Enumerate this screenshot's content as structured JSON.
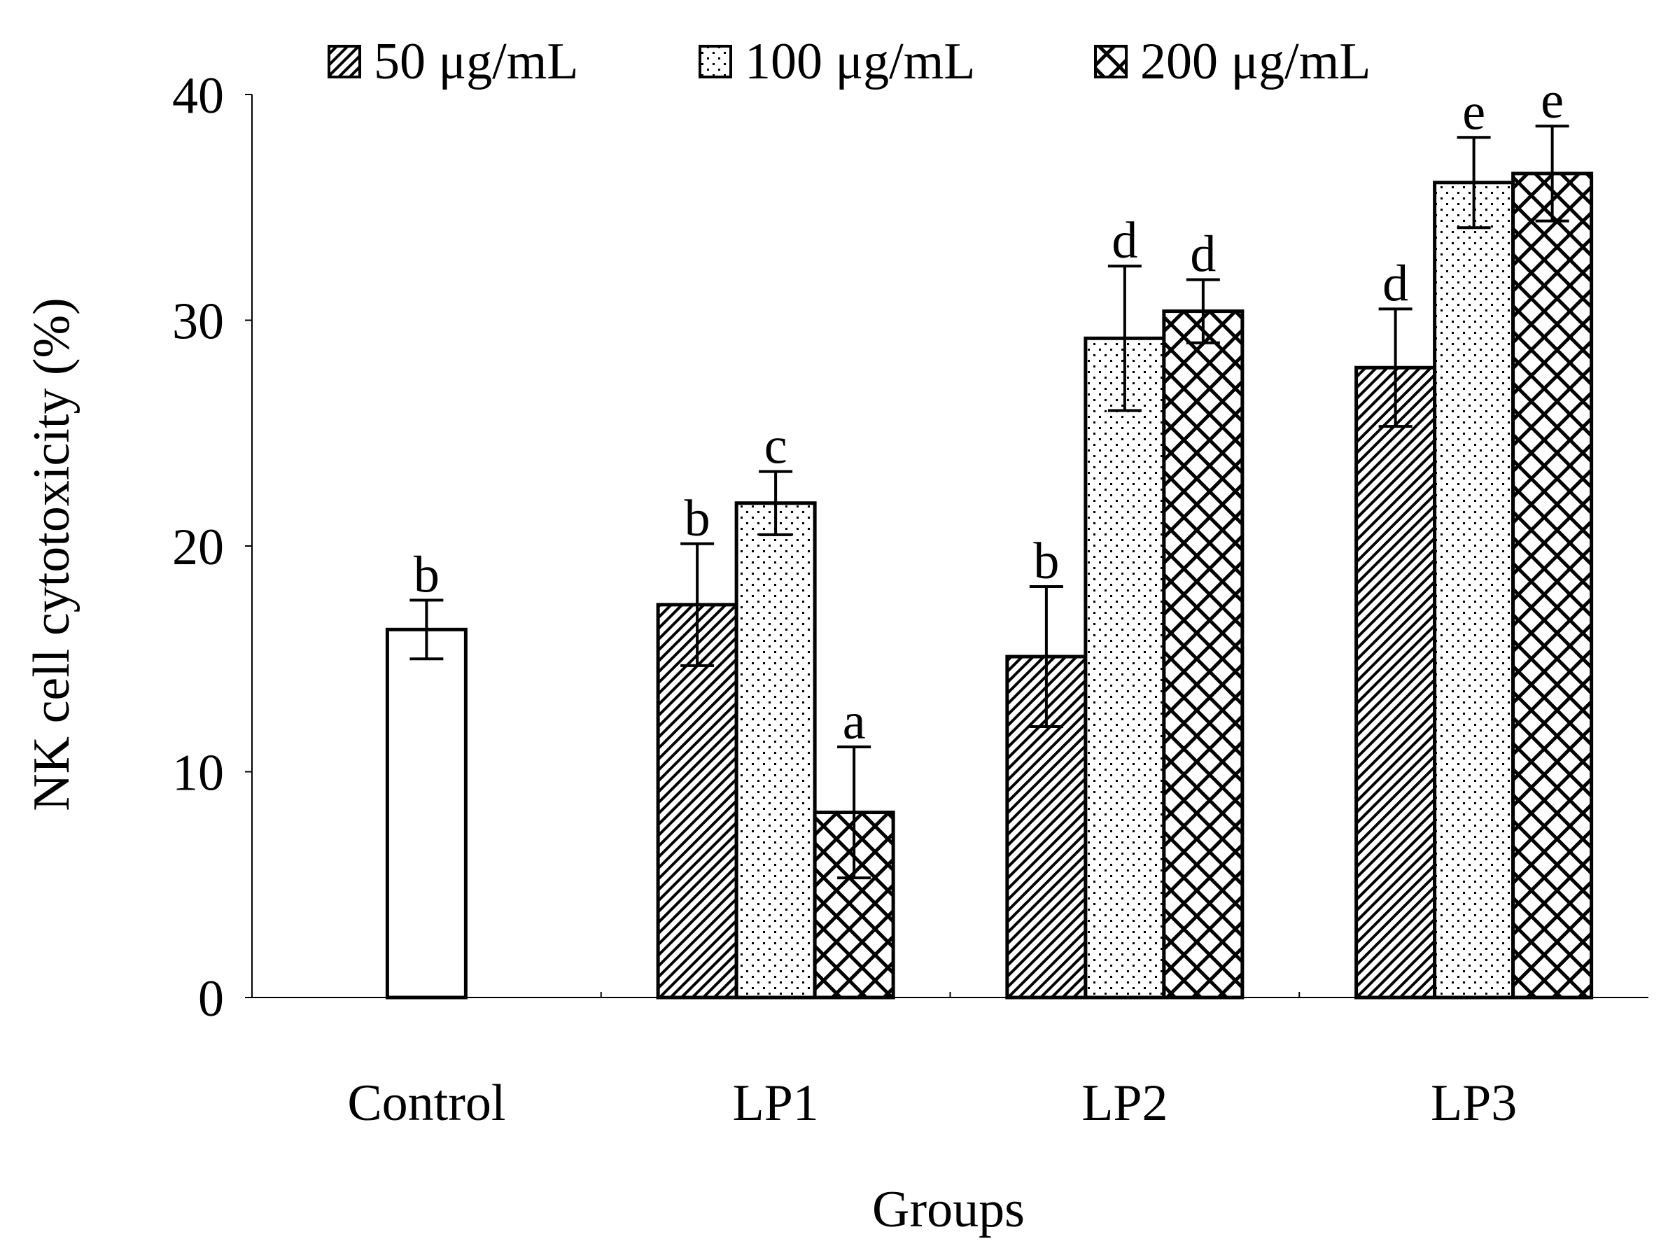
{
  "chart_data": {
    "type": "bar",
    "ylabel": "NK cell cytotoxicity (%)",
    "xlabel": "Groups",
    "ylim": [
      0,
      40
    ],
    "yticks": [
      0,
      10,
      20,
      30,
      40
    ],
    "categories": [
      "Control",
      "LP1",
      "LP2",
      "LP3"
    ],
    "legend_position": "top",
    "series": [
      {
        "name": "50 μg/mL",
        "pattern": "diagonal"
      },
      {
        "name": "100 μg/mL",
        "pattern": "dots"
      },
      {
        "name": "200 μg/mL",
        "pattern": "crosshatch"
      }
    ],
    "bars": [
      {
        "category": "Control",
        "series": null,
        "value": 16.3,
        "error": 1.3,
        "label": "b"
      },
      {
        "category": "LP1",
        "series": "50 μg/mL",
        "value": 17.4,
        "error": 2.7,
        "label": "b"
      },
      {
        "category": "LP1",
        "series": "100 μg/mL",
        "value": 21.9,
        "error": 1.4,
        "label": "c"
      },
      {
        "category": "LP1",
        "series": "200 μg/mL",
        "value": 8.2,
        "error": 2.9,
        "label": "a"
      },
      {
        "category": "LP2",
        "series": "50 μg/mL",
        "value": 15.1,
        "error": 3.1,
        "label": "b"
      },
      {
        "category": "LP2",
        "series": "100 μg/mL",
        "value": 29.2,
        "error": 3.2,
        "label": "d"
      },
      {
        "category": "LP2",
        "series": "200 μg/mL",
        "value": 30.4,
        "error": 1.4,
        "label": "d"
      },
      {
        "category": "LP3",
        "series": "50 μg/mL",
        "value": 27.9,
        "error": 2.6,
        "label": "d"
      },
      {
        "category": "LP3",
        "series": "100 μg/mL",
        "value": 36.1,
        "error": 2.0,
        "label": "e"
      },
      {
        "category": "LP3",
        "series": "200 μg/mL",
        "value": 36.5,
        "error": 2.1,
        "label": "e"
      }
    ]
  }
}
